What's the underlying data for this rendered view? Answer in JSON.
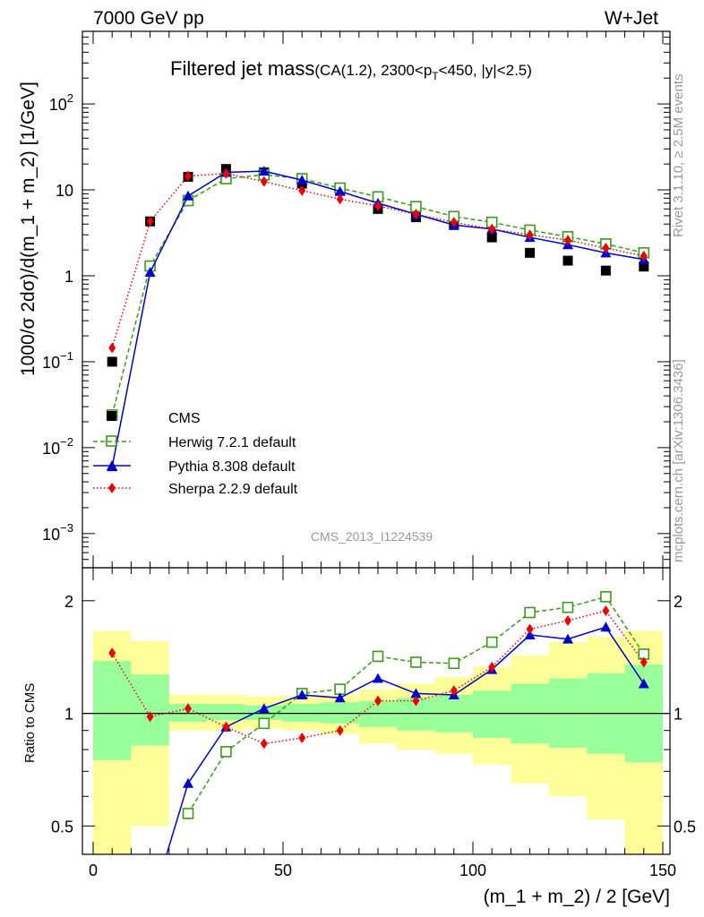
{
  "header": {
    "left": "7000 GeV pp",
    "right": "W+Jet"
  },
  "title": {
    "main": "Filtered jet mass",
    "sub": "(CA(1.2), 2300<p",
    "sub_subscript": "T",
    "sub_tail": "<450, |y|<2.5)"
  },
  "side_labels": {
    "rivet": "Rivet 3.1.10, ≥ 2.5M events",
    "mcplots": "mcplots.cern.ch [arXiv:1306.3436]"
  },
  "watermark": "CMS_2013_I1224539",
  "chart_data": [
    {
      "type": "line",
      "panel": "main",
      "ylabel": "1000/σ 2dσ)/d(m_1 + m_2) [1/GeV]",
      "yscale": "log",
      "xlim": [
        0,
        150
      ],
      "ylim": [
        0.0004,
        700
      ],
      "y_tick_labels": [
        {
          "v": 0.001,
          "base": "10",
          "exp": "−3"
        },
        {
          "v": 0.01,
          "base": "10",
          "exp": "−2"
        },
        {
          "v": 0.1,
          "base": "10",
          "exp": "−1"
        },
        {
          "v": 1,
          "base": "1",
          "exp": ""
        },
        {
          "v": 10,
          "base": "10",
          "exp": ""
        },
        {
          "v": 100,
          "base": "10",
          "exp": "2"
        }
      ],
      "x": [
        5,
        15,
        25,
        35,
        45,
        55,
        65,
        75,
        85,
        95,
        105,
        115,
        125,
        135,
        145
      ],
      "series": [
        {
          "name": "CMS",
          "style": "square-filled",
          "color": "#000000",
          "values": [
            0.1,
            4.3,
            14.2,
            17.5,
            16.0,
            11.8,
            9.8,
            6.0,
            4.8,
            3.9,
            2.8,
            1.85,
            1.5,
            1.15,
            1.28
          ]
        },
        {
          "name": "Herwig 7.2.1 default",
          "style": "square-open-dashed",
          "color": "#3a9a1a",
          "values": [
            0.024,
            1.3,
            7.5,
            13.5,
            15.0,
            13.5,
            10.5,
            8.3,
            6.4,
            4.9,
            4.2,
            3.4,
            2.85,
            2.35,
            1.85
          ]
        },
        {
          "name": "Pythia 8.308 default",
          "style": "triangle-solid",
          "color": "#0000cc",
          "values": [
            0.006,
            1.1,
            8.5,
            16.0,
            16.5,
            13.0,
            9.6,
            7.0,
            5.2,
            3.9,
            3.5,
            2.8,
            2.3,
            1.85,
            1.55
          ]
        },
        {
          "name": "Sherpa 2.2.9 default",
          "style": "diamond-dotted",
          "color": "#ee0000",
          "values": [
            0.145,
            4.3,
            14.5,
            15.5,
            12.5,
            9.8,
            7.8,
            6.5,
            5.2,
            4.2,
            3.5,
            3.0,
            2.6,
            2.1,
            1.7
          ]
        }
      ]
    },
    {
      "type": "line",
      "panel": "ratio",
      "ylabel": "Ratio to CMS",
      "xlabel": "(m_1 + m_2) / 2 [GeV]",
      "yscale": "log",
      "xlim": [
        0,
        150
      ],
      "ylim": [
        0.42,
        2.45
      ],
      "y_tick_labels": [
        0.5,
        1,
        2
      ],
      "x_tick_labels": [
        0,
        50,
        100,
        150
      ],
      "bin_edges": [
        0,
        10,
        20,
        30,
        40,
        50,
        60,
        70,
        80,
        90,
        100,
        110,
        120,
        130,
        140,
        150
      ],
      "band_inner": {
        "color": "#99ff99",
        "lo": [
          0.75,
          0.82,
          0.95,
          0.96,
          0.96,
          0.95,
          0.94,
          0.92,
          0.9,
          0.89,
          0.86,
          0.83,
          0.81,
          0.78,
          0.74
        ],
        "hi": [
          1.38,
          1.27,
          1.06,
          1.06,
          1.05,
          1.06,
          1.07,
          1.08,
          1.1,
          1.12,
          1.15,
          1.2,
          1.24,
          1.28,
          1.35
        ]
      },
      "band_outer": {
        "color": "#ffff99",
        "lo": [
          0.37,
          0.5,
          0.9,
          0.9,
          0.91,
          0.9,
          0.88,
          0.83,
          0.8,
          0.78,
          0.73,
          0.65,
          0.6,
          0.52,
          0.38
        ],
        "hi": [
          1.66,
          1.56,
          1.12,
          1.12,
          1.11,
          1.11,
          1.12,
          1.16,
          1.2,
          1.25,
          1.33,
          1.43,
          1.55,
          1.6,
          1.66
        ]
      },
      "series": [
        {
          "name": "Herwig 7.2.1 default",
          "color": "#3a9a1a",
          "values": [
            null,
            null,
            0.54,
            0.79,
            0.94,
            1.13,
            1.16,
            1.42,
            1.37,
            1.36,
            1.55,
            1.86,
            1.92,
            2.05,
            1.44
          ]
        },
        {
          "name": "Pythia 8.308 default",
          "color": "#0000cc",
          "values": [
            null,
            0.3,
            0.65,
            0.92,
            1.03,
            1.12,
            1.1,
            1.24,
            1.13,
            1.12,
            1.31,
            1.62,
            1.58,
            1.7,
            1.2
          ]
        },
        {
          "name": "Sherpa 2.2.9 default",
          "color": "#ee0000",
          "values": [
            1.45,
            0.98,
            1.03,
            0.92,
            0.83,
            0.86,
            0.9,
            1.08,
            1.08,
            1.15,
            1.33,
            1.68,
            1.77,
            1.88,
            1.37
          ]
        }
      ]
    }
  ]
}
